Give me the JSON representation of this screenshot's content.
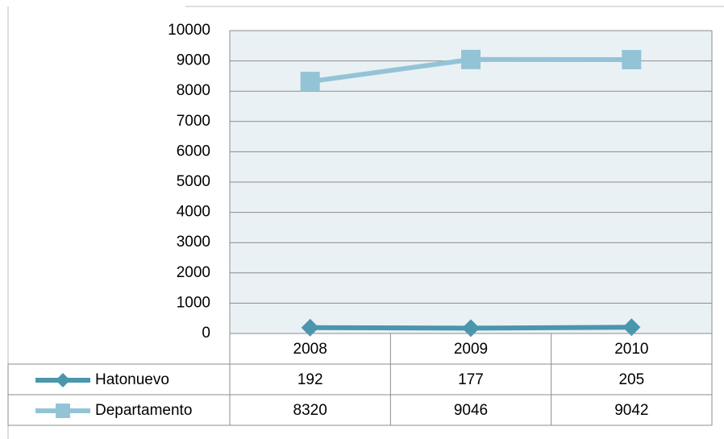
{
  "chart_data": {
    "type": "line",
    "categories": [
      "2008",
      "2009",
      "2010"
    ],
    "series": [
      {
        "name": "Hatonuevo",
        "color": "#4a96ad",
        "marker": "diamond",
        "values": [
          192,
          177,
          205
        ]
      },
      {
        "name": "Departamento",
        "color": "#93c4d6",
        "marker": "square",
        "values": [
          8320,
          9046,
          9042
        ]
      }
    ],
    "ylim": [
      0,
      10000
    ],
    "yticks": [
      0,
      1000,
      2000,
      3000,
      4000,
      5000,
      6000,
      7000,
      8000,
      9000,
      10000
    ],
    "grid": true,
    "data_table": true
  }
}
